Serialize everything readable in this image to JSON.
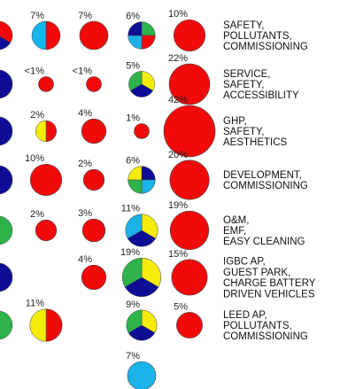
{
  "colors": {
    "red": "#f20a0a",
    "blue": "#0d0d96",
    "green": "#2db34a",
    "yellow": "#f5ec0a",
    "cyan": "#1ab2e8",
    "stroke": "#444444"
  },
  "chart_data": {
    "type": "bubble-matrix",
    "columns": 6,
    "rows": [
      {
        "label": [
          "SAFETY,",
          "POLLUTANTS,",
          "COMMISSIONING"
        ],
        "cells": [
          {
            "col": 0,
            "pct": "",
            "value": 0,
            "segments": [
              "red",
              "blue",
              "green"
            ]
          },
          {
            "col": 1,
            "pct": "7%",
            "value": 7,
            "segments": [
              "red",
              "cyan"
            ]
          },
          {
            "col": 2,
            "pct": "7%",
            "value": 7,
            "segments": [
              "red"
            ]
          },
          {
            "col": 3,
            "pct": "6%",
            "value": 6,
            "segments": [
              "green",
              "red",
              "cyan",
              "blue"
            ]
          },
          {
            "col": 4,
            "pct": "10%",
            "value": 10,
            "segments": [
              "red"
            ]
          }
        ]
      },
      {
        "label": [
          "SERVICE,",
          "SAFETY,",
          "ACCESSIBILITY"
        ],
        "cells": [
          {
            "col": 0,
            "pct": "",
            "value": 0,
            "segments": [
              "blue"
            ]
          },
          {
            "col": 1,
            "pct": "<1%",
            "value": 1,
            "segments": [
              "red"
            ]
          },
          {
            "col": 2,
            "pct": "<1%",
            "value": 1,
            "segments": [
              "red"
            ]
          },
          {
            "col": 3,
            "pct": "5%",
            "value": 5,
            "segments": [
              "yellow",
              "blue",
              "green"
            ]
          },
          {
            "col": 4,
            "pct": "22%",
            "value": 22,
            "segments": [
              "red"
            ]
          }
        ]
      },
      {
        "label": [
          "GHP,",
          "SAFETY,",
          "AESTHETICS"
        ],
        "cells": [
          {
            "col": 0,
            "pct": "",
            "value": 0,
            "segments": [
              "blue"
            ]
          },
          {
            "col": 1,
            "pct": "2%",
            "value": 2,
            "segments": [
              "red",
              "yellow"
            ]
          },
          {
            "col": 2,
            "pct": "4%",
            "value": 4,
            "segments": [
              "red"
            ]
          },
          {
            "col": 3,
            "pct": "1%",
            "value": 1,
            "segments": [
              "red"
            ]
          },
          {
            "col": 4,
            "pct": "42%",
            "value": 42,
            "segments": [
              "red"
            ]
          }
        ]
      },
      {
        "label": [
          "DEVELOPMENT,",
          "COMMISSIONING"
        ],
        "cells": [
          {
            "col": 0,
            "pct": "",
            "value": 0,
            "segments": [
              "blue"
            ]
          },
          {
            "col": 1,
            "pct": "10%",
            "value": 10,
            "segments": [
              "red"
            ]
          },
          {
            "col": 2,
            "pct": "2%",
            "value": 2,
            "segments": [
              "red"
            ]
          },
          {
            "col": 3,
            "pct": "6%",
            "value": 6,
            "segments": [
              "blue",
              "cyan",
              "green",
              "yellow"
            ]
          },
          {
            "col": 4,
            "pct": "20%",
            "value": 20,
            "segments": [
              "red"
            ]
          }
        ]
      },
      {
        "label": [
          "O&M,",
          "EMF,",
          "EASY CLEANING"
        ],
        "cells": [
          {
            "col": 0,
            "pct": "",
            "value": 0,
            "segments": [
              "green",
              "blue"
            ]
          },
          {
            "col": 1,
            "pct": "2%",
            "value": 2,
            "segments": [
              "red"
            ]
          },
          {
            "col": 2,
            "pct": "3%",
            "value": 3,
            "segments": [
              "red"
            ]
          },
          {
            "col": 3,
            "pct": "11%",
            "value": 11,
            "segments": [
              "yellow",
              "blue",
              "cyan"
            ]
          },
          {
            "col": 4,
            "pct": "19%",
            "value": 19,
            "segments": [
              "red"
            ]
          }
        ]
      },
      {
        "label": [
          "IGBC AP,",
          "GUEST PARK,",
          "CHARGE BATTERY",
          "DRIVEN VEHICLES"
        ],
        "cells": [
          {
            "col": 0,
            "pct": "",
            "value": 0,
            "segments": [
              "blue"
            ]
          },
          {
            "col": 2,
            "pct": "4%",
            "value": 4,
            "segments": [
              "red"
            ]
          },
          {
            "col": 3,
            "pct": "19%",
            "value": 19,
            "segments": [
              "yellow",
              "blue",
              "green"
            ]
          },
          {
            "col": 4,
            "pct": "15%",
            "value": 15,
            "segments": [
              "red"
            ]
          }
        ]
      },
      {
        "label": [
          "LEED AP,",
          "POLLUTANTS,",
          "COMMISSIONING"
        ],
        "cells": [
          {
            "col": 0,
            "pct": "",
            "value": 0,
            "segments": [
              "green",
              "blue"
            ]
          },
          {
            "col": 1,
            "pct": "11%",
            "value": 11,
            "segments": [
              "red",
              "yellow"
            ]
          },
          {
            "col": 3,
            "pct": "9%",
            "value": 9,
            "segments": [
              "yellow",
              "blue",
              "green"
            ]
          },
          {
            "col": 4,
            "pct": "5%",
            "value": 5,
            "segments": [
              "red"
            ]
          }
        ]
      },
      {
        "label": [],
        "cells": [
          {
            "col": 3,
            "pct": "7%",
            "value": 7,
            "segments": [
              "cyan"
            ]
          }
        ]
      }
    ]
  }
}
